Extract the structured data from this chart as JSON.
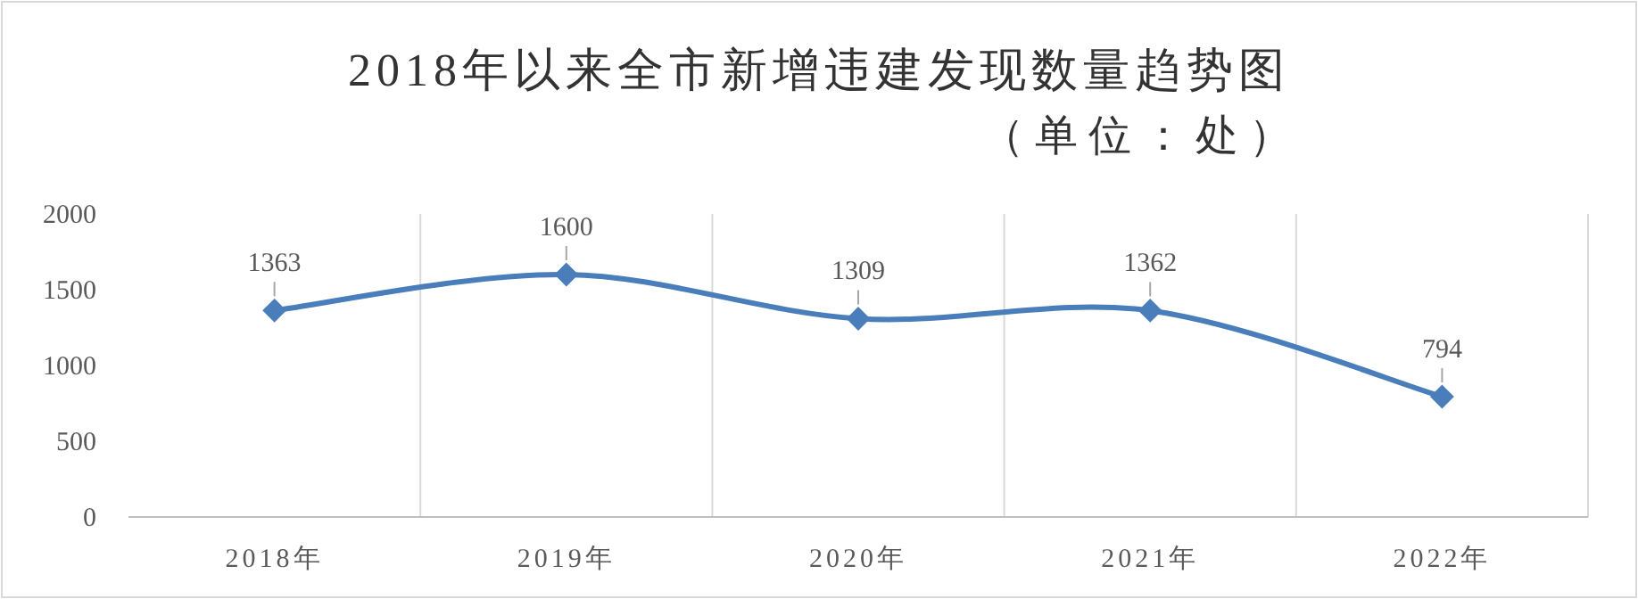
{
  "chart_data": {
    "type": "line",
    "title": "2018年以来全市新增违建发现数量趋势图",
    "subtitle": "（单位：处）",
    "categories": [
      "2018年",
      "2019年",
      "2020年",
      "2021年",
      "2022年"
    ],
    "series": [
      {
        "color": "#4a7ebb",
        "values": [
          1363,
          1600,
          1309,
          1362,
          794
        ]
      }
    ],
    "ylim": [
      0,
      2000
    ],
    "yticks": [
      0,
      500,
      1000,
      1500,
      2000
    ],
    "grid": "x",
    "marker": "diamond",
    "line_style": "solid",
    "data_labels": true
  }
}
